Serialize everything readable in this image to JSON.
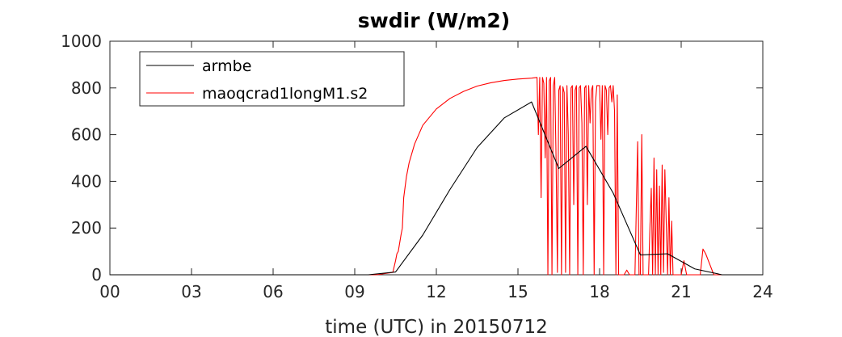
{
  "chart_data": {
    "type": "line",
    "title": "swdir  (W/m2)",
    "xlabel": "time (UTC) in 20150712",
    "ylabel": "",
    "xlim": [
      0,
      24
    ],
    "ylim": [
      0,
      1000
    ],
    "x_ticks": [
      0,
      3,
      6,
      9,
      12,
      15,
      18,
      21,
      24
    ],
    "x_tick_labels": [
      "00",
      "03",
      "06",
      "09",
      "12",
      "15",
      "18",
      "21",
      "24"
    ],
    "y_ticks": [
      0,
      200,
      400,
      600,
      800,
      1000
    ],
    "y_tick_labels": [
      "0",
      "200",
      "400",
      "600",
      "800",
      "1000"
    ],
    "grid": false,
    "legend_position": "top-left",
    "series": [
      {
        "name": "armbe",
        "color": "#000000",
        "x": [
          0,
          1.5,
          2.5,
          3.5,
          4.5,
          5.5,
          6.5,
          7.5,
          8.5,
          9.5,
          10.5,
          11.5,
          12.5,
          13.5,
          14.5,
          15.5,
          16.5,
          17.5,
          18.5,
          19.5,
          20.5,
          21.5,
          22.5,
          23.5,
          24
        ],
        "y": [
          0,
          0,
          0,
          0,
          0,
          0,
          0,
          0,
          0,
          0,
          12,
          170,
          365,
          545,
          672,
          740,
          455,
          550,
          350,
          85,
          90,
          25,
          0,
          0,
          0
        ]
      },
      {
        "name": "maoqcrad1longM1.s2",
        "color": "#ff0000",
        "x": [
          0,
          9.8,
          10.4,
          10.5,
          10.55,
          10.6,
          10.7,
          10.75,
          10.8,
          10.9,
          11.0,
          11.2,
          11.5,
          12.0,
          12.5,
          13.0,
          13.5,
          14.0,
          14.5,
          15.0,
          15.5,
          15.7,
          15.75,
          15.8,
          15.85,
          15.9,
          15.95,
          16.0,
          16.05,
          16.1,
          16.15,
          16.2,
          16.25,
          16.3,
          16.35,
          16.4,
          16.45,
          16.5,
          16.55,
          16.6,
          16.65,
          16.7,
          16.75,
          16.8,
          16.85,
          16.9,
          16.95,
          17.0,
          17.05,
          17.1,
          17.15,
          17.2,
          17.25,
          17.3,
          17.35,
          17.4,
          17.45,
          17.5,
          17.55,
          17.6,
          17.65,
          17.7,
          17.75,
          17.8,
          17.85,
          17.9,
          17.95,
          18.0,
          18.05,
          18.1,
          18.15,
          18.2,
          18.25,
          18.3,
          18.35,
          18.4,
          18.45,
          18.5,
          18.55,
          18.6,
          18.65,
          18.7,
          18.8,
          18.9,
          19.0,
          19.1,
          19.2,
          19.3,
          19.4,
          19.45,
          19.5,
          19.55,
          19.6,
          19.7,
          19.8,
          19.85,
          19.9,
          19.95,
          20.0,
          20.05,
          20.1,
          20.15,
          20.2,
          20.25,
          20.3,
          20.35,
          20.4,
          20.5,
          20.55,
          20.6,
          20.65,
          20.7,
          20.75,
          20.8,
          20.9,
          21.0,
          21.1,
          21.2,
          21.3,
          21.5,
          21.6,
          21.7,
          21.8,
          21.9,
          22.0,
          22.2,
          24
        ],
        "y": [
          0,
          0,
          10,
          60,
          90,
          100,
          170,
          200,
          330,
          420,
          480,
          560,
          640,
          710,
          755,
          785,
          808,
          822,
          832,
          838,
          842,
          845,
          600,
          845,
          330,
          845,
          820,
          500,
          845,
          0,
          830,
          845,
          0,
          810,
          845,
          500,
          10,
          790,
          810,
          0,
          805,
          780,
          10,
          810,
          600,
          0,
          800,
          810,
          300,
          790,
          810,
          0,
          800,
          810,
          650,
          0,
          800,
          810,
          300,
          810,
          650,
          790,
          810,
          0,
          740,
          810,
          810,
          810,
          580,
          810,
          0,
          810,
          790,
          600,
          800,
          810,
          740,
          810,
          700,
          0,
          770,
          0,
          0,
          0,
          20,
          0,
          0,
          0,
          570,
          0,
          0,
          600,
          0,
          0,
          0,
          200,
          370,
          0,
          500,
          0,
          450,
          0,
          380,
          0,
          470,
          10,
          450,
          0,
          330,
          0,
          230,
          0,
          0,
          0,
          0,
          0,
          60,
          0,
          0,
          0,
          0,
          0,
          110,
          90,
          60,
          0,
          0
        ]
      }
    ]
  }
}
